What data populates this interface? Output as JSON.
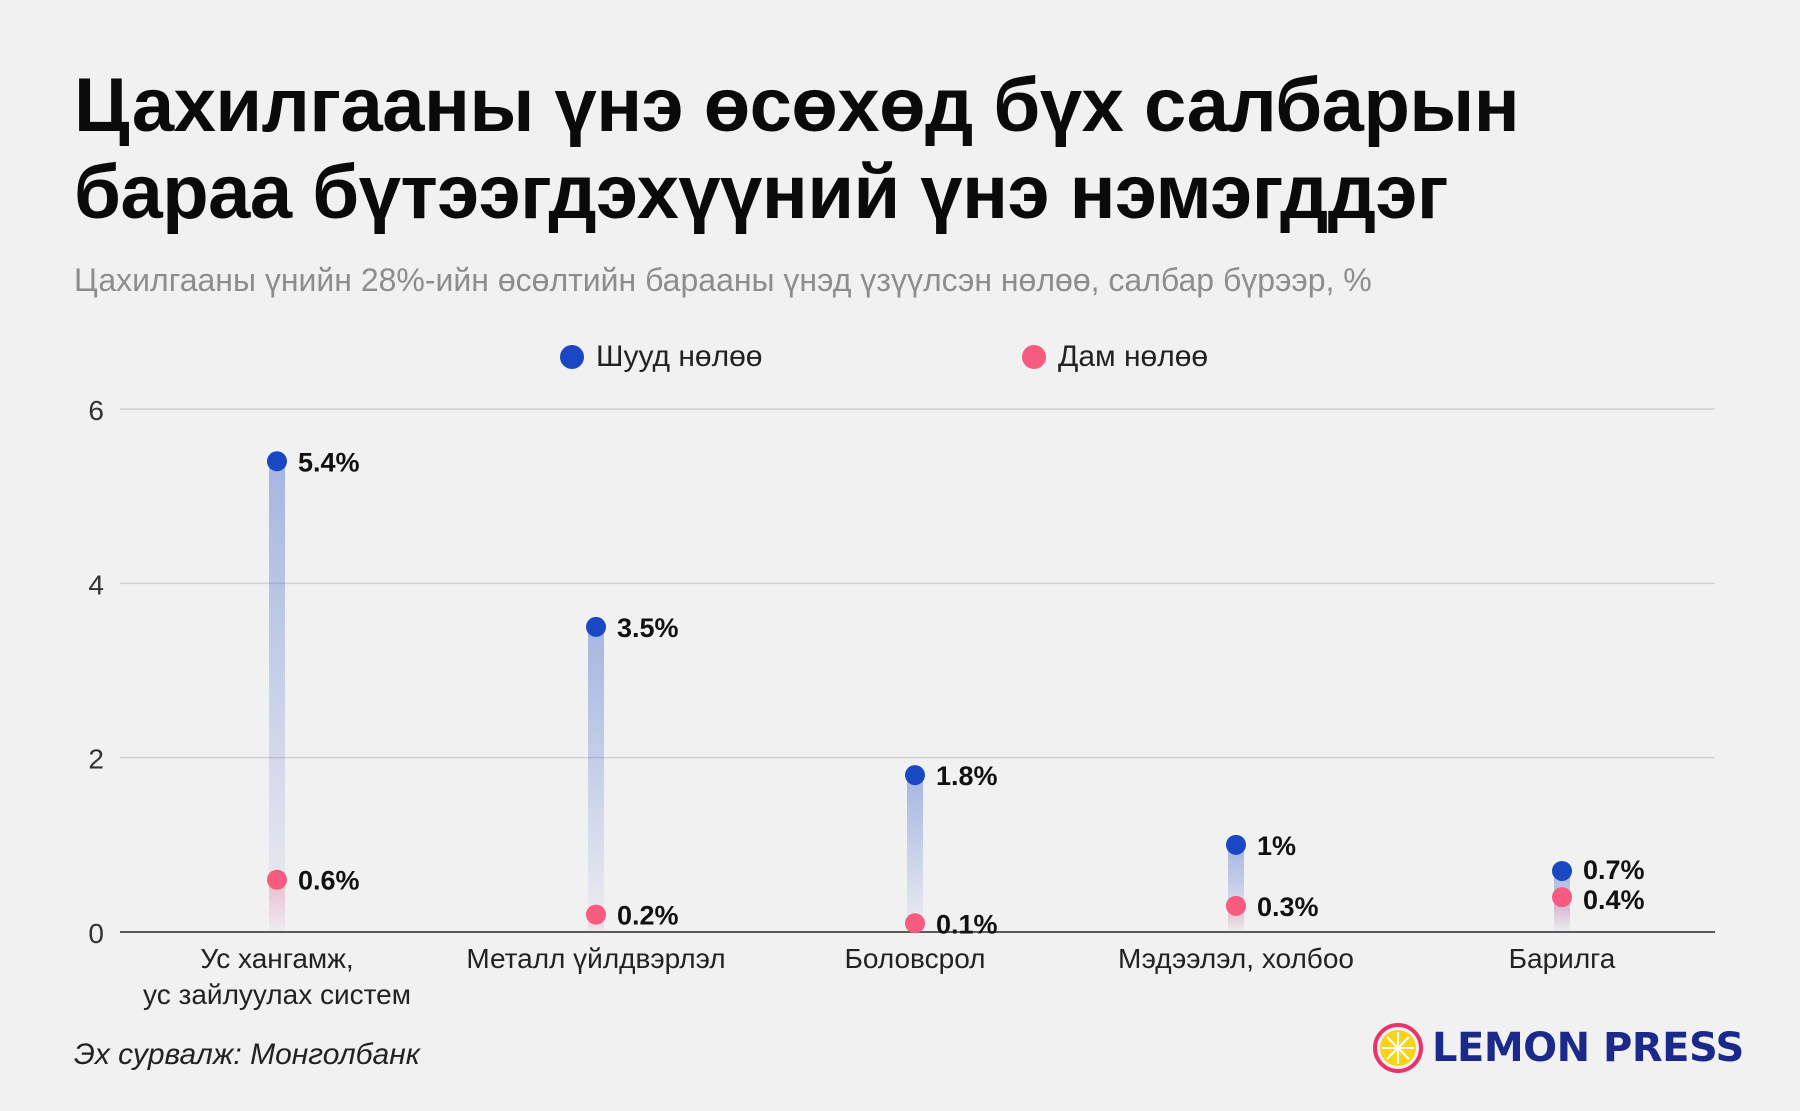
{
  "title_lines": [
    "Цахилгааны үнэ өсөхөд бүх салбарын",
    "бараа бүтээгдэхүүний үнэ нэмэгддэг"
  ],
  "subtitle": "Цахилгааны үнийн 28%-ийн өсөлтийн барааны үнэд үзүүлсэн нөлөө, салбар бүрээр, %",
  "source": "Эх сурвалж: Монголбанк",
  "brand": {
    "name": "LEMON PRESS",
    "color": "#1b2a8a",
    "ring_color": "#e8336b",
    "lemon_color": "#f7d31a"
  },
  "chart_data": {
    "type": "dot-range",
    "title": "Цахилгааны үнэ өсөхөд бүх салбарын бараа бүтээгдэхүүний үнэ нэмэгддэг",
    "subtitle": "Цахилгааны үнийн 28%-ийн өсөлтийн барааны үнэд үзүүлсэн нөлөө, салбар бүрээр, %",
    "categories": [
      [
        "Ус хангамж,",
        "ус зайлуулах систем"
      ],
      [
        "Металл үйлдвэрлэл"
      ],
      [
        "Боловсрол"
      ],
      [
        "Мэдээлэл, холбоо"
      ],
      [
        "Барилга"
      ]
    ],
    "series": [
      {
        "name": "Шууд нөлөө",
        "color": "#1a47c4",
        "values": [
          5.4,
          3.5,
          1.8,
          1.0,
          0.7
        ],
        "labels": [
          "5.4%",
          "3.5%",
          "1.8%",
          "1%",
          "0.7%"
        ]
      },
      {
        "name": "Дам нөлөө",
        "color": "#f75b80",
        "values": [
          0.6,
          0.2,
          0.1,
          0.3,
          0.4
        ],
        "labels": [
          "0.6%",
          "0.2%",
          "0.1%",
          "0.3%",
          "0.4%"
        ]
      }
    ],
    "ylim": [
      0,
      6
    ],
    "yticks": [
      0,
      2,
      4,
      6
    ],
    "grid": true,
    "legend_position": "top-center",
    "xlabel": "",
    "ylabel": ""
  }
}
